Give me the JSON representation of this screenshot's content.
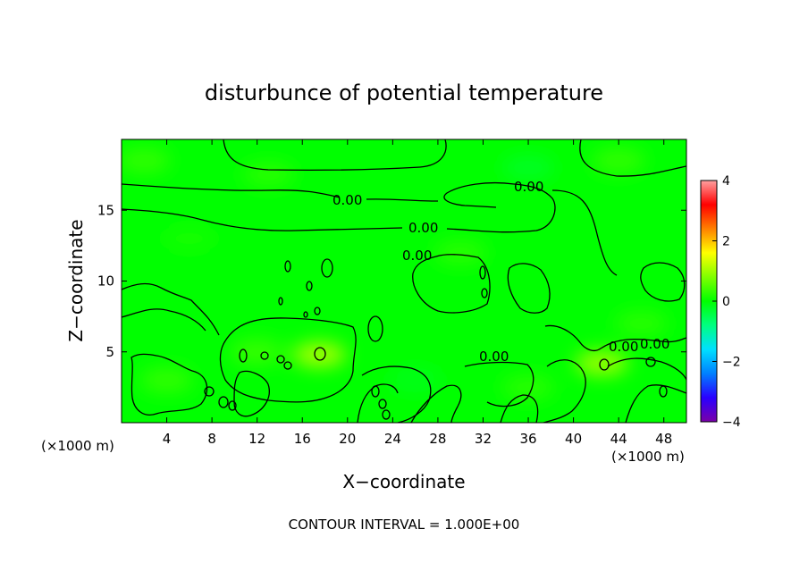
{
  "chart_data": {
    "type": "heatmap",
    "title": "disturbunce of potential temperature",
    "xlabel": "X−coordinate",
    "ylabel": "Z−coordinate",
    "x_unit_left": "(×1000 m)",
    "x_unit_right": "(×1000 m)",
    "xlim": [
      0,
      50
    ],
    "ylim": [
      0,
      20
    ],
    "x_ticks": [
      4,
      8,
      12,
      16,
      20,
      24,
      28,
      32,
      36,
      40,
      44,
      48
    ],
    "y_ticks": [
      5,
      10,
      15
    ],
    "contour_labels": [
      "0.00",
      "0.00",
      "0.00",
      "0.00",
      "0.00",
      "0.00",
      "0.00"
    ],
    "footer": "CONTOUR INTERVAL = 1.000E+00",
    "colorbar": {
      "min": -4,
      "max": 4,
      "ticks": [
        4,
        2,
        0,
        -2,
        -4
      ],
      "colors": [
        "#7a00a8",
        "#2a00ff",
        "#0080ff",
        "#00e0ff",
        "#00ff80",
        "#00ff00",
        "#80ff00",
        "#ffff00",
        "#ff8000",
        "#ff0000",
        "#ffa0a0"
      ]
    },
    "field_base_value": 0.0,
    "field_patches": [
      {
        "x": 2,
        "z": 18.5,
        "v": 0.35
      },
      {
        "x": 13,
        "z": 17.5,
        "v": 0.3
      },
      {
        "x": 36,
        "z": 18,
        "v": -0.25
      },
      {
        "x": 44,
        "z": 18.5,
        "v": 0.35
      },
      {
        "x": 6,
        "z": 13,
        "v": 0.15
      },
      {
        "x": 30,
        "z": 12,
        "v": 0.3
      },
      {
        "x": 17.5,
        "z": 4.8,
        "v": 1.2
      },
      {
        "x": 42.5,
        "z": 4.2,
        "v": 1.1
      },
      {
        "x": 12,
        "z": 5,
        "v": 0.4
      },
      {
        "x": 4,
        "z": 3,
        "v": 0.35
      },
      {
        "x": 26,
        "z": 3,
        "v": -0.2
      },
      {
        "x": 36,
        "z": 2.5,
        "v": 0.3
      },
      {
        "x": 46,
        "z": 7,
        "v": 0.3
      }
    ]
  }
}
